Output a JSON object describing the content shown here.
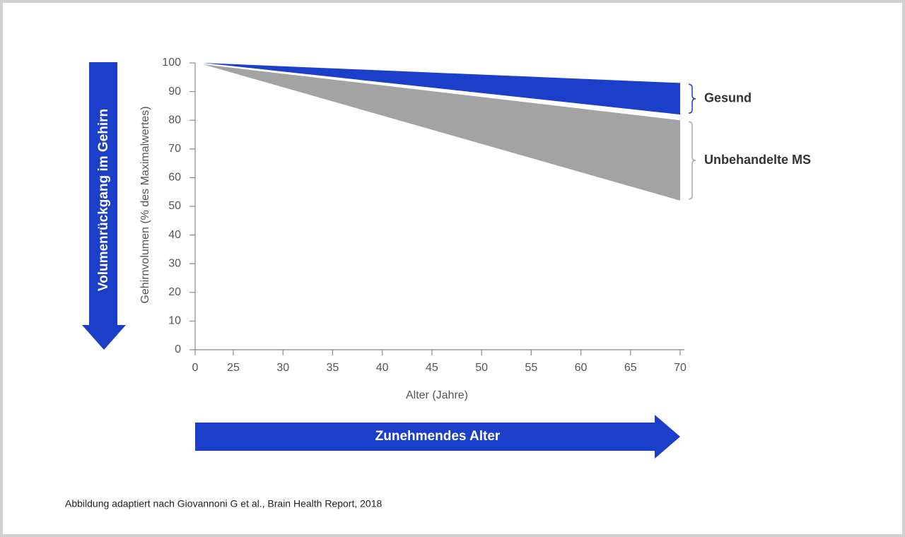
{
  "chart_data": {
    "type": "range-area",
    "xlabel": "Alter (Jahre)",
    "ylabel": "Gehirnvolumen (% des Maximalwertes)",
    "x": [
      5,
      70
    ],
    "series": [
      {
        "name": "Gesund",
        "color": "#1b3fc9",
        "upper": [
          100,
          93
        ],
        "lower": [
          100,
          82
        ]
      },
      {
        "name": "Unbehandelte MS",
        "color": "#a3a3a3",
        "upper": [
          99.5,
          80
        ],
        "lower": [
          99.5,
          52
        ]
      }
    ],
    "bracket_colors": [
      "#1b3fc9",
      "#aaaaaa"
    ],
    "xlim": [
      0,
      70
    ],
    "xticks": [
      0,
      25,
      30,
      35,
      40,
      45,
      50,
      55,
      60,
      65,
      70
    ],
    "ylim": [
      0,
      100
    ],
    "yticks": [
      0,
      10,
      20,
      30,
      40,
      50,
      60,
      70,
      80,
      90,
      100
    ],
    "arrows": {
      "vertical": "Volumenrückgang im Gehirn",
      "horizontal": "Zunehmendes Alter",
      "color": "#1b3fc9"
    },
    "source": "Abbildung adaptiert nach Giovannoni G et al., Brain Health Report, 2018"
  }
}
